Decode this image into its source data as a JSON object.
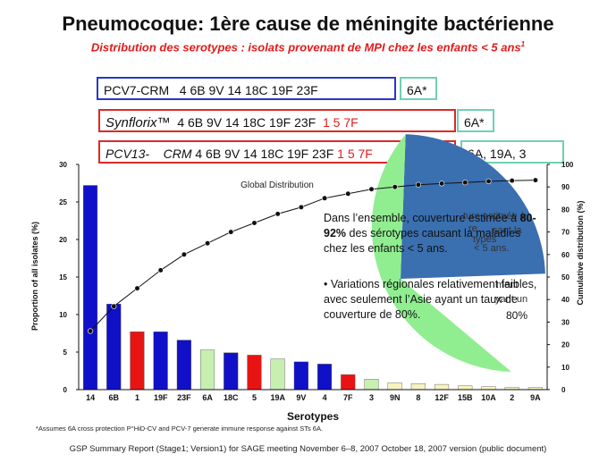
{
  "slide": {
    "title": "Pneumocoque: 1ère cause de méningite bactérienne",
    "subtitle": "Distribution des serotypes : isolats provenant de MPI chez les enfants < 5 ans",
    "subtitle_sup": "1"
  },
  "vaccines": {
    "pcv7": {
      "name": "PCV7-CRM",
      "serotypes": "4  6B  9V  14  18C 19F 23F",
      "extra": "6A*"
    },
    "synflorix": {
      "name": "Synflorix™",
      "serotypes": "4  6B  9V  14  18C 19F 23F",
      "added": "1  5  7F",
      "extra": "6A*"
    },
    "pcv13": {
      "name": "PCV13-",
      "carrier": "CRM",
      "serotypes": "4  6B  9V  14  18C 19F 23F",
      "added": "1  5  7F",
      "extra": "6A, 19A, 3"
    }
  },
  "overlay": {
    "p1_before": "Dans l’ensemble, couverture estimée à ",
    "p1_bold": "80-92%",
    "p1_after": " des sérotypes causant la maladies chez les enfants < 5 ans.",
    "p2": "• Variations régionales relativement faibles, avec seulement l’Asie ayant un taux de couverture de 80%.",
    "stray_1": "ture estimée à",
    "stray_2": "sant la",
    "stray_3": "types",
    "stray_4": "re",
    "stray_5": "< 5 ans.",
    "stray_6": "ment",
    "stray_7": "yant un",
    "stray_8": "80%"
  },
  "footer": {
    "footnote": "*Assumes 6A cross protection P°HiD-CV and PCV-7 generate  immune response against STs 6A.",
    "source": "GSP Summary  Report (Stage1; Version1) for SAGE meeting November 6–8, 2007 October 18, 2007 version (public document)"
  },
  "colors": {
    "blue_bar": "#1010c8",
    "red_bar": "#e81414",
    "green_bar": "#c6efb0",
    "yellow_bar": "#f6f3c0",
    "pie_green": "#90ee90",
    "pie_blue": "#3a6fb0"
  },
  "chart_data": {
    "type": "bar",
    "title": "Global Distribution",
    "xlabel": "Serotypes",
    "ylabel": "Proportion of all isolates (%)",
    "y2label": "Cumulative distribution (%)",
    "ylim": [
      0,
      30
    ],
    "y2lim": [
      0,
      100
    ],
    "yticks": [
      0,
      5,
      10,
      15,
      20,
      25,
      30
    ],
    "y2ticks": [
      0,
      10,
      20,
      30,
      40,
      50,
      60,
      70,
      80,
      90,
      100
    ],
    "categories": [
      "14",
      "6B",
      "1",
      "19F",
      "23F",
      "6A",
      "18C",
      "5",
      "19A",
      "9V",
      "4",
      "7F",
      "3",
      "9N",
      "8",
      "12F",
      "15B",
      "10A",
      "2",
      "9A"
    ],
    "values": [
      27.2,
      11.4,
      7.7,
      7.7,
      6.6,
      5.3,
      4.9,
      4.6,
      4.1,
      3.7,
      3.4,
      2.0,
      1.4,
      0.9,
      0.8,
      0.7,
      0.5,
      0.4,
      0.3,
      0.3
    ],
    "bar_colors": [
      "blue",
      "blue",
      "red",
      "blue",
      "blue",
      "green",
      "blue",
      "red",
      "green",
      "blue",
      "blue",
      "red",
      "green",
      "yellow",
      "yellow",
      "yellow",
      "yellow",
      "yellow",
      "yellow",
      "yellow"
    ],
    "series": [
      {
        "name": "Cumulative",
        "axis": "right",
        "values": [
          26,
          37,
          45,
          53,
          60,
          65,
          70,
          74,
          78,
          81,
          85,
          87,
          89,
          90,
          91,
          91.5,
          92,
          92.5,
          92.8,
          93
        ]
      }
    ]
  }
}
